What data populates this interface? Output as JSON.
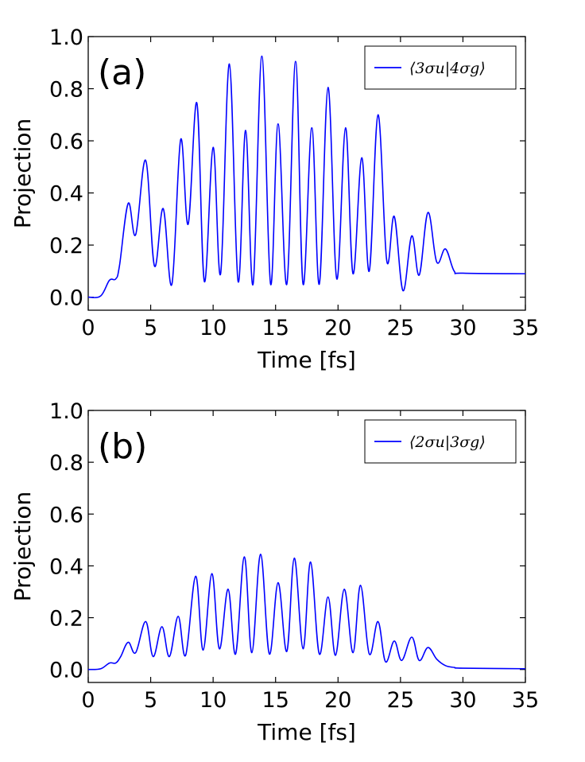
{
  "chart_data": [
    {
      "type": "line",
      "panel_label": "(a)",
      "xlabel": "Time [fs]",
      "ylabel": "Projection",
      "xlim": [
        0,
        35
      ],
      "ylim": [
        -0.05,
        1.0
      ],
      "x_ticks": [
        "0",
        "5",
        "10",
        "15",
        "20",
        "25",
        "30",
        "35"
      ],
      "y_ticks": [
        "0.0",
        "0.2",
        "0.4",
        "0.6",
        "0.8",
        "1.0"
      ],
      "legend_position": "top-right",
      "series": [
        {
          "name": "⟨3σu|4σg⟩",
          "color": "#0000ff",
          "points": [
            [
              0,
              0
            ],
            [
              1,
              0.005
            ],
            [
              1.7,
              0.065
            ],
            [
              2.2,
              0.07
            ],
            [
              2.5,
              0.12
            ],
            [
              3.2,
              0.36
            ],
            [
              3.8,
              0.24
            ],
            [
              4.6,
              0.525
            ],
            [
              5.3,
              0.12
            ],
            [
              6.0,
              0.34
            ],
            [
              6.7,
              0.05
            ],
            [
              7.4,
              0.605
            ],
            [
              8.0,
              0.28
            ],
            [
              8.7,
              0.745
            ],
            [
              9.3,
              0.06
            ],
            [
              10.0,
              0.575
            ],
            [
              10.6,
              0.09
            ],
            [
              11.3,
              0.895
            ],
            [
              12.0,
              0.06
            ],
            [
              12.6,
              0.64
            ],
            [
              13.2,
              0.05
            ],
            [
              13.9,
              0.925
            ],
            [
              14.6,
              0.05
            ],
            [
              15.2,
              0.665
            ],
            [
              15.9,
              0.05
            ],
            [
              16.6,
              0.905
            ],
            [
              17.2,
              0.05
            ],
            [
              17.9,
              0.65
            ],
            [
              18.5,
              0.05
            ],
            [
              19.2,
              0.805
            ],
            [
              19.9,
              0.07
            ],
            [
              20.6,
              0.65
            ],
            [
              21.2,
              0.09
            ],
            [
              21.9,
              0.535
            ],
            [
              22.5,
              0.1
            ],
            [
              23.2,
              0.7
            ],
            [
              23.9,
              0.14
            ],
            [
              24.5,
              0.31
            ],
            [
              25.2,
              0.025
            ],
            [
              25.9,
              0.235
            ],
            [
              26.5,
              0.085
            ],
            [
              27.2,
              0.325
            ],
            [
              27.9,
              0.135
            ],
            [
              28.6,
              0.185
            ],
            [
              29.3,
              0.1
            ],
            [
              30,
              0.092
            ],
            [
              35,
              0.09
            ]
          ]
        }
      ]
    },
    {
      "type": "line",
      "panel_label": "(b)",
      "xlabel": "Time [fs]",
      "ylabel": "Projection",
      "xlim": [
        0,
        35
      ],
      "ylim": [
        -0.05,
        1.0
      ],
      "x_ticks": [
        "0",
        "5",
        "10",
        "15",
        "20",
        "25",
        "30",
        "35"
      ],
      "y_ticks": [
        "0.0",
        "0.2",
        "0.4",
        "0.6",
        "0.8",
        "1.0"
      ],
      "legend_position": "top-right",
      "series": [
        {
          "name": "⟨2σu|3σg⟩",
          "color": "#0000ff",
          "points": [
            [
              0,
              0
            ],
            [
              1,
              0.003
            ],
            [
              1.7,
              0.025
            ],
            [
              2.2,
              0.025
            ],
            [
              2.6,
              0.05
            ],
            [
              3.2,
              0.105
            ],
            [
              3.8,
              0.065
            ],
            [
              4.6,
              0.185
            ],
            [
              5.2,
              0.05
            ],
            [
              5.9,
              0.165
            ],
            [
              6.5,
              0.05
            ],
            [
              7.2,
              0.205
            ],
            [
              7.8,
              0.055
            ],
            [
              8.6,
              0.36
            ],
            [
              9.2,
              0.075
            ],
            [
              9.9,
              0.37
            ],
            [
              10.5,
              0.08
            ],
            [
              11.2,
              0.31
            ],
            [
              11.8,
              0.06
            ],
            [
              12.5,
              0.435
            ],
            [
              13.1,
              0.065
            ],
            [
              13.8,
              0.445
            ],
            [
              14.5,
              0.06
            ],
            [
              15.2,
              0.335
            ],
            [
              15.9,
              0.07
            ],
            [
              16.5,
              0.43
            ],
            [
              17.2,
              0.08
            ],
            [
              17.8,
              0.415
            ],
            [
              18.5,
              0.06
            ],
            [
              19.2,
              0.28
            ],
            [
              19.8,
              0.055
            ],
            [
              20.5,
              0.31
            ],
            [
              21.2,
              0.065
            ],
            [
              21.8,
              0.325
            ],
            [
              22.5,
              0.06
            ],
            [
              23.2,
              0.185
            ],
            [
              23.8,
              0.03
            ],
            [
              24.5,
              0.11
            ],
            [
              25.1,
              0.035
            ],
            [
              25.9,
              0.125
            ],
            [
              26.5,
              0.035
            ],
            [
              27.2,
              0.085
            ],
            [
              27.9,
              0.04
            ],
            [
              28.6,
              0.015
            ],
            [
              29.3,
              0.008
            ],
            [
              30,
              0.005
            ],
            [
              35,
              0.003
            ]
          ]
        }
      ]
    }
  ]
}
